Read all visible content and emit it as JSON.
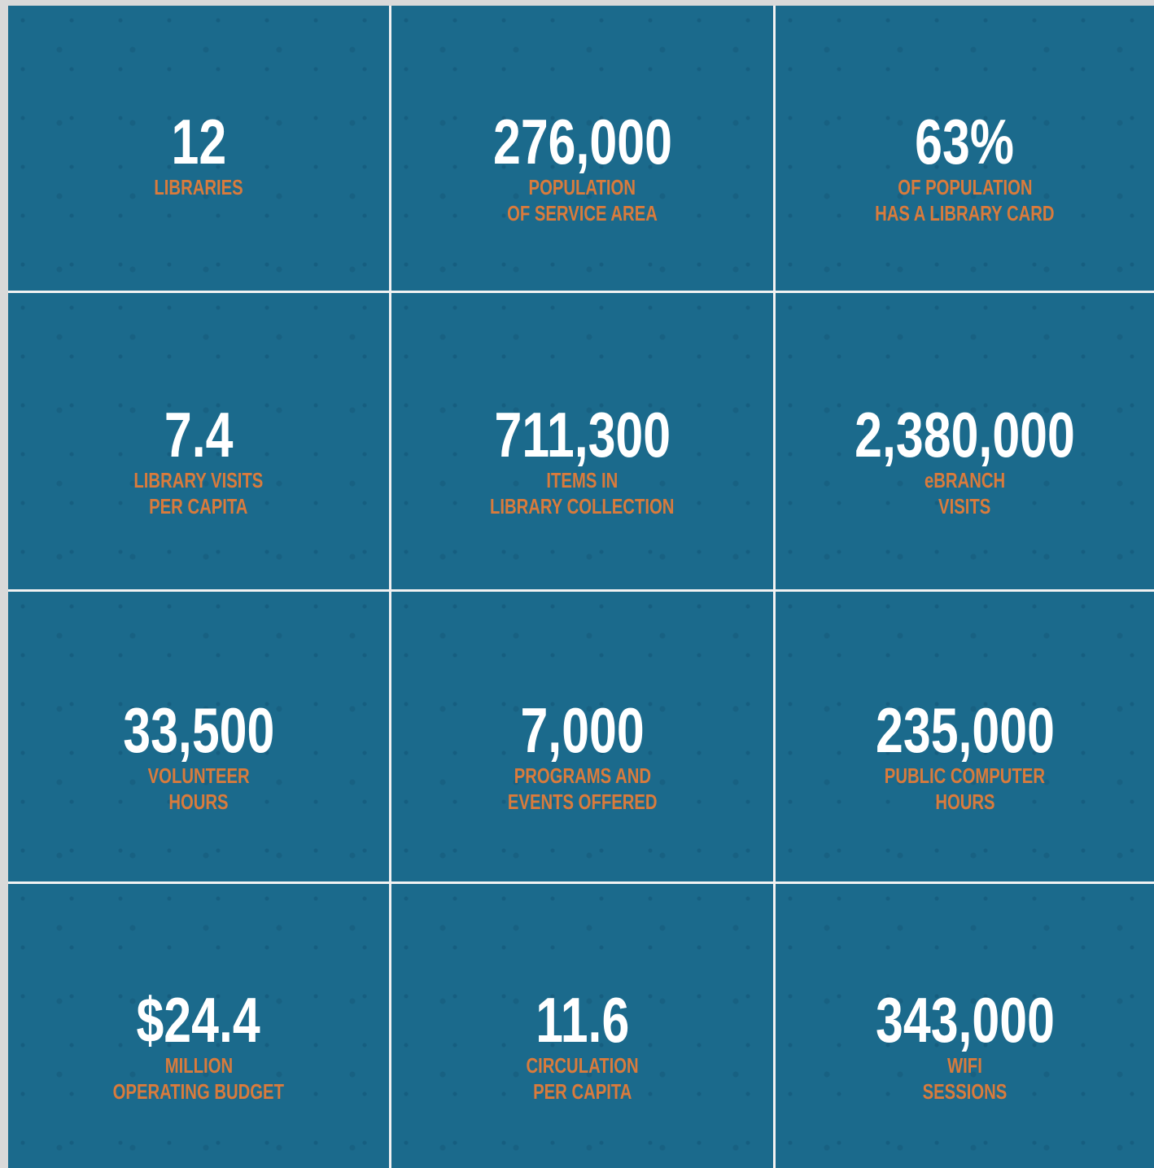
{
  "cells": [
    {
      "value": "12",
      "label": [
        "LIBRARIES"
      ]
    },
    {
      "value": "276,000",
      "label": [
        "POPULATION",
        "OF SERVICE AREA"
      ]
    },
    {
      "value": "63%",
      "label": [
        "OF POPULATION",
        "HAS A LIBRARY CARD"
      ]
    },
    {
      "value": "7.4",
      "label": [
        "LIBRARY VISITS",
        "PER CAPITA"
      ]
    },
    {
      "value": "711,300",
      "label": [
        "ITEMS IN",
        "LIBRARY COLLECTION"
      ]
    },
    {
      "value": "2,380,000",
      "label": [
        "eBRANCH",
        "VISITS"
      ]
    },
    {
      "value": "33,500",
      "label": [
        "VOLUNTEER",
        "HOURS"
      ]
    },
    {
      "value": "7,000",
      "label": [
        "PROGRAMS AND",
        "EVENTS OFFERED"
      ]
    },
    {
      "value": "235,000",
      "label": [
        "PUBLIC COMPUTER",
        "HOURS"
      ]
    },
    {
      "value": "$24.4",
      "label": [
        "MILLION",
        "OPERATING BUDGET"
      ]
    },
    {
      "value": "11.6",
      "label": [
        "CIRCULATION",
        "PER CAPITA"
      ]
    },
    {
      "value": "343,000",
      "label": [
        "WIFI",
        "SESSIONS"
      ]
    }
  ]
}
